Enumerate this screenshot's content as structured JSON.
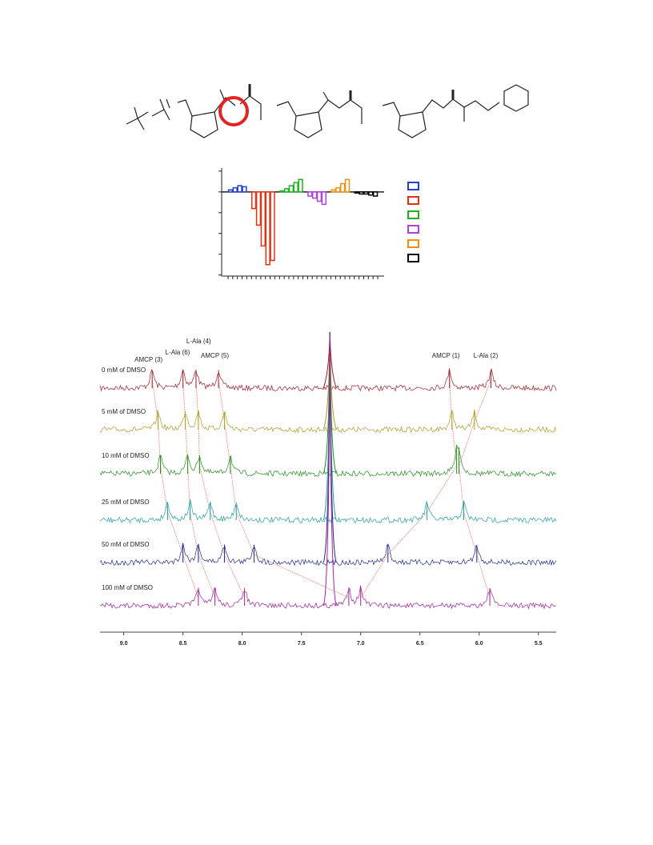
{
  "bar_chart": {
    "type": "bar",
    "ylim": [
      -4.05,
      1.15
    ],
    "yticks": [
      1,
      0,
      -1,
      -2,
      -3,
      -4
    ],
    "series": [
      {
        "color": "#2040d0",
        "values": [
          0.1,
          0.2,
          0.3,
          0.25
        ]
      },
      {
        "color": "#e83010",
        "values": [
          -0.8,
          -1.6,
          -2.6,
          -3.5,
          -3.3
        ]
      },
      {
        "color": "#20b020",
        "values": [
          0.05,
          0.15,
          0.3,
          0.45,
          0.6
        ]
      },
      {
        "color": "#b040e0",
        "values": [
          -0.2,
          -0.3,
          -0.45,
          -0.6
        ]
      },
      {
        "color": "#f09010",
        "values": [
          0.1,
          0.2,
          0.4,
          0.6
        ]
      },
      {
        "color": "#000000",
        "values": [
          -0.05,
          -0.1,
          -0.1,
          -0.15,
          -0.2
        ]
      }
    ]
  },
  "spectrum": {
    "xlim": [
      9.2,
      5.35
    ],
    "xticks": [
      {
        "value": 9,
        "label": "9.0"
      },
      {
        "value": 8.5,
        "label": "8.5"
      },
      {
        "value": 8,
        "label": "8.0"
      },
      {
        "value": 7.5,
        "label": "7.5"
      },
      {
        "value": 7,
        "label": "7.0"
      },
      {
        "value": 6.5,
        "label": "6.5"
      },
      {
        "value": 6,
        "label": "6.0"
      },
      5.5
    ],
    "solvent_peak": 7.26,
    "peak_labels": [
      "AMCP (3)",
      "L-Ala (6)",
      "L-Ala (4)",
      "AMCP (5)",
      "AMCP (1)",
      "L-Ala (2)"
    ],
    "traces": [
      {
        "label": "0 mM of DMSO",
        "color": "#a01a28",
        "peaks": [
          8.76,
          8.5,
          8.39,
          8.2,
          6.25,
          5.9
        ]
      },
      {
        "label": "5 mM of DMSO",
        "color": "#a8a020",
        "peaks": [
          8.71,
          8.48,
          8.37,
          8.15,
          6.23,
          6.04
        ]
      },
      {
        "label": "10 mM of DMSO",
        "color": "#20901a",
        "peaks": [
          8.69,
          8.46,
          8.36,
          8.1,
          6.19,
          6.17
        ]
      },
      {
        "label": "25 mM of DMSO",
        "color": "#20a0a0",
        "peaks": [
          8.63,
          8.44,
          8.27,
          8.05,
          6.44,
          6.13
        ]
      },
      {
        "label": "50 mM of DMSO",
        "color": "#202890",
        "peaks": [
          8.5,
          8.37,
          8.15,
          7.9,
          6.77,
          6.02
        ]
      },
      {
        "label": "100 mM of DMSO",
        "color": "#a020a0",
        "peaks": [
          8.37,
          8.23,
          7.98,
          7.1,
          7.0,
          5.91
        ]
      }
    ]
  }
}
